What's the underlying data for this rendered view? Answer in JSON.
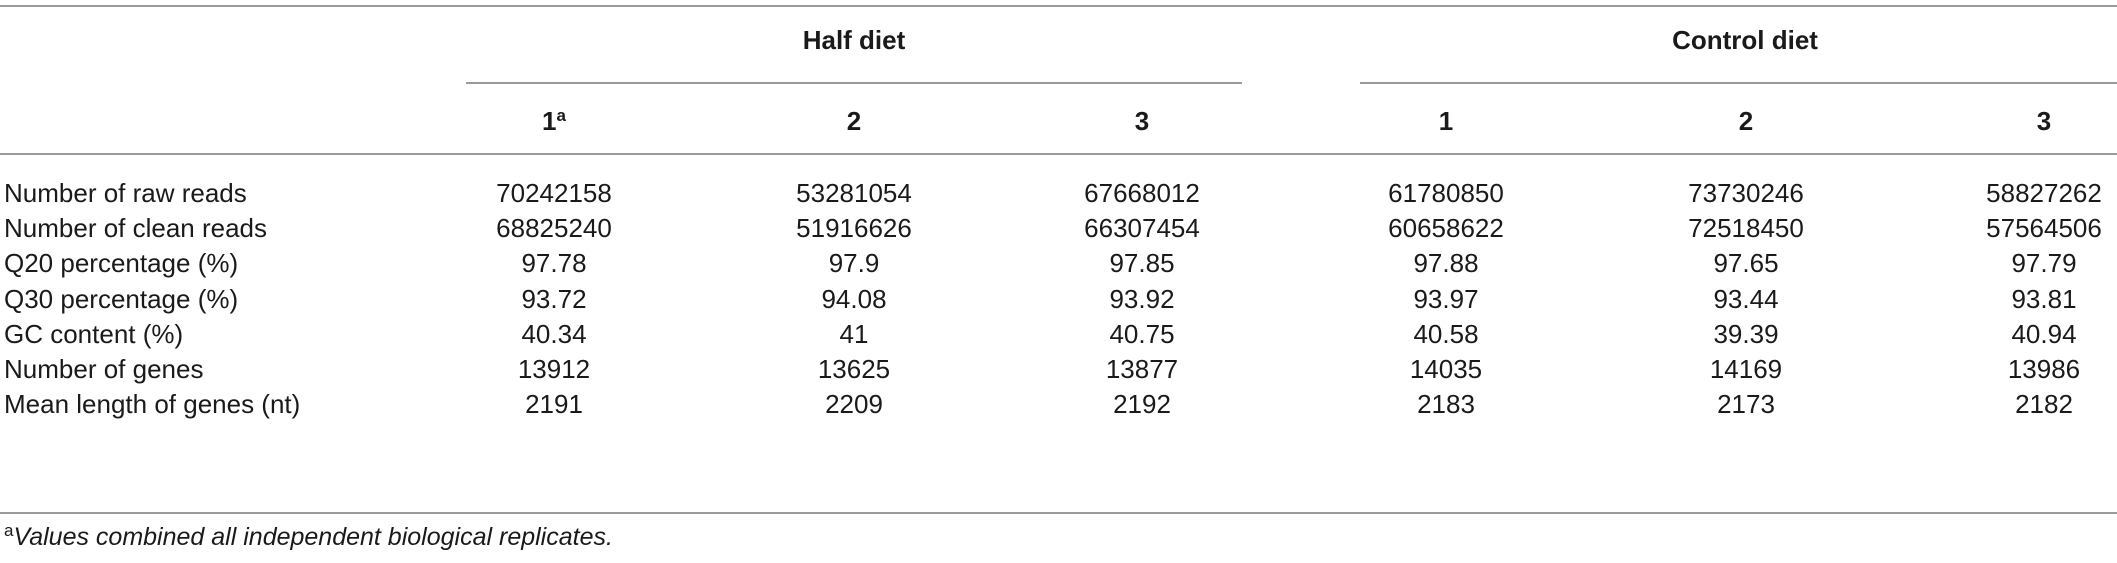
{
  "table": {
    "groups": [
      "Half diet",
      "Control diet"
    ],
    "columns": [
      {
        "label": "1",
        "sup": "a"
      },
      {
        "label": "2",
        "sup": ""
      },
      {
        "label": "3",
        "sup": ""
      },
      {
        "label": "1",
        "sup": ""
      },
      {
        "label": "2",
        "sup": ""
      },
      {
        "label": "3",
        "sup": ""
      }
    ],
    "rows": [
      {
        "label": "Number of raw reads",
        "values": [
          "70242158",
          "53281054",
          "67668012",
          "61780850",
          "73730246",
          "58827262"
        ]
      },
      {
        "label": "Number of clean reads",
        "values": [
          "68825240",
          "51916626",
          "66307454",
          "60658622",
          "72518450",
          "57564506"
        ]
      },
      {
        "label": "Q20 percentage (%)",
        "values": [
          "97.78",
          "97.9",
          "97.85",
          "97.88",
          "97.65",
          "97.79"
        ]
      },
      {
        "label": "Q30 percentage (%)",
        "values": [
          "93.72",
          "94.08",
          "93.92",
          "93.97",
          "93.44",
          "93.81"
        ]
      },
      {
        "label": "GC content (%)",
        "values": [
          "40.34",
          "41",
          "40.75",
          "40.58",
          "39.39",
          "40.94"
        ]
      },
      {
        "label": "Number of genes",
        "values": [
          "13912",
          "13625",
          "13877",
          "14035",
          "14169",
          "13986"
        ]
      },
      {
        "label": "Mean length of genes (nt)",
        "values": [
          "2191",
          "2209",
          "2192",
          "2183",
          "2173",
          "2182"
        ]
      }
    ],
    "footnote": {
      "marker": "a",
      "text": "Values combined all independent biological replicates."
    }
  }
}
